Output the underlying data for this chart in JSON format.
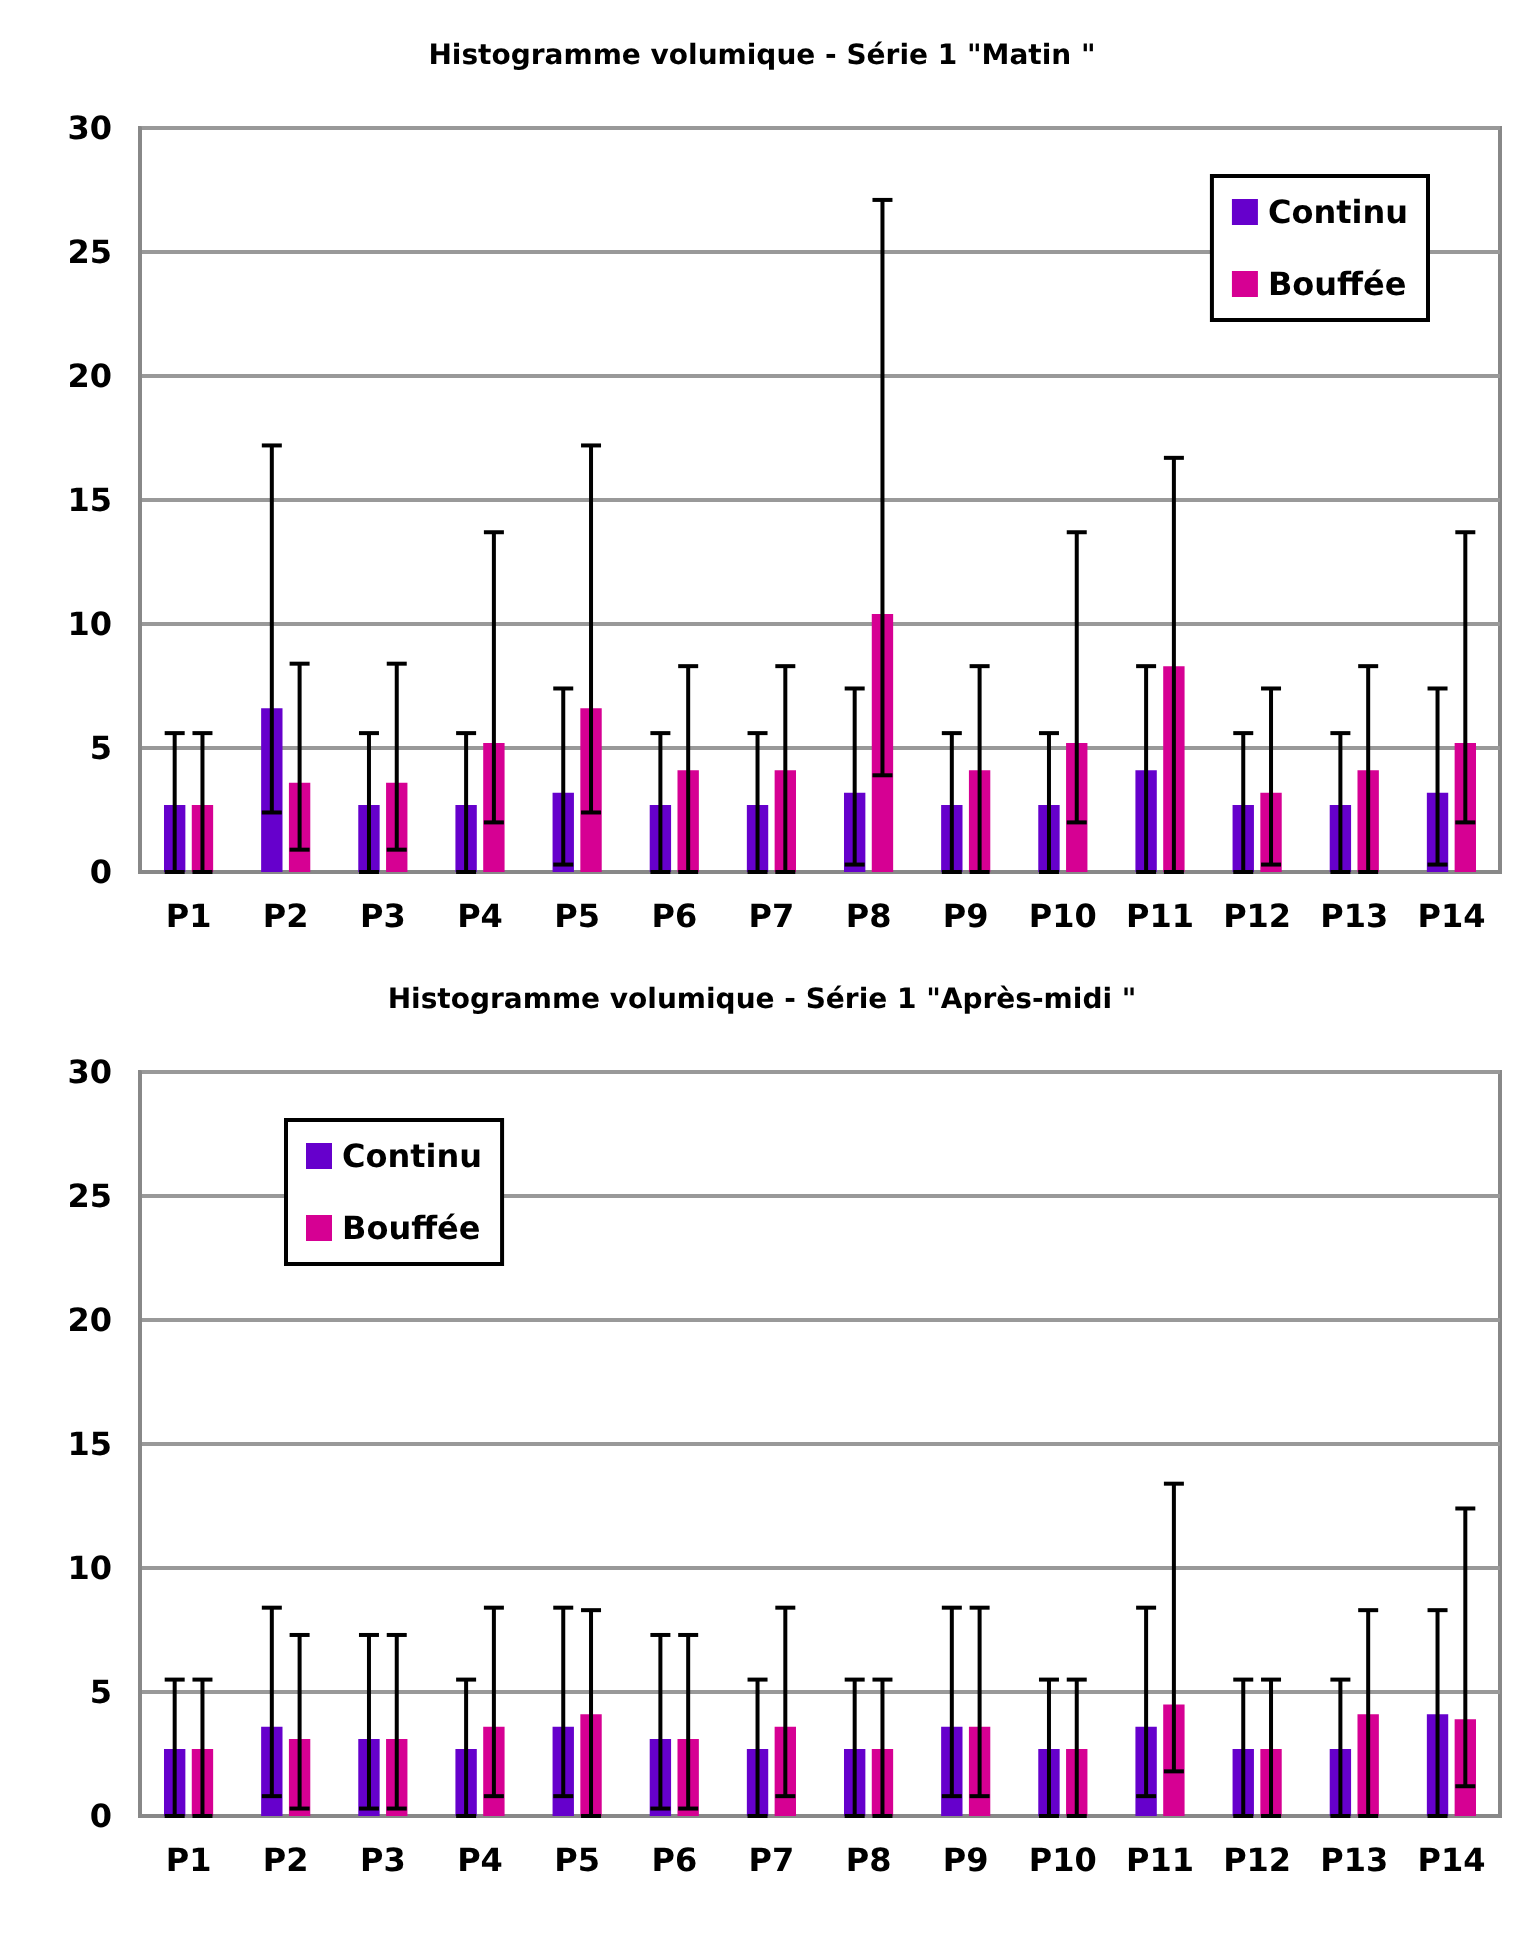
{
  "chart_data": [
    {
      "type": "bar",
      "title": "Histogramme volumique - Série 1 \"Matin \"",
      "categories": [
        "P1",
        "P2",
        "P3",
        "P4",
        "P5",
        "P6",
        "P7",
        "P8",
        "P9",
        "P10",
        "P11",
        "P12",
        "P13",
        "P14"
      ],
      "ylim": [
        0,
        30
      ],
      "yticks": [
        0,
        5,
        10,
        15,
        20,
        25,
        30
      ],
      "grid": "y",
      "legend": "top right",
      "series": [
        {
          "name": "Continu",
          "color": "#6600cc",
          "values": [
            2.7,
            6.6,
            2.7,
            2.7,
            3.2,
            2.7,
            2.7,
            3.2,
            2.7,
            2.7,
            4.1,
            2.7,
            2.7,
            3.2
          ],
          "errors": [
            [
              0,
              5.6
            ],
            [
              2.4,
              17.2
            ],
            [
              0,
              5.6
            ],
            [
              0,
              5.6
            ],
            [
              0.3,
              7.4
            ],
            [
              0,
              5.6
            ],
            [
              0,
              5.6
            ],
            [
              0.3,
              7.4
            ],
            [
              0,
              5.6
            ],
            [
              0,
              5.6
            ],
            [
              0,
              8.3
            ],
            [
              0,
              5.6
            ],
            [
              0,
              5.6
            ],
            [
              0.3,
              7.4
            ]
          ]
        },
        {
          "name": "Bouffée",
          "color": "#d60093",
          "values": [
            2.7,
            3.6,
            3.6,
            5.2,
            6.6,
            4.1,
            4.1,
            10.4,
            4.1,
            5.2,
            8.3,
            3.2,
            4.1,
            5.2
          ],
          "errors": [
            [
              0,
              5.6
            ],
            [
              0.9,
              8.4
            ],
            [
              0.9,
              8.4
            ],
            [
              2.0,
              13.7
            ],
            [
              2.4,
              17.2
            ],
            [
              0,
              8.3
            ],
            [
              0,
              8.3
            ],
            [
              3.9,
              27.1
            ],
            [
              0,
              8.3
            ],
            [
              2.0,
              13.7
            ],
            [
              0,
              16.7
            ],
            [
              0.3,
              7.4
            ],
            [
              0,
              8.3
            ],
            [
              2.0,
              13.7
            ]
          ]
        }
      ]
    },
    {
      "type": "bar",
      "title": "Histogramme volumique - Série 1 \"Après-midi \"",
      "categories": [
        "P1",
        "P2",
        "P3",
        "P4",
        "P5",
        "P6",
        "P7",
        "P8",
        "P9",
        "P10",
        "P11",
        "P12",
        "P13",
        "P14"
      ],
      "ylim": [
        0,
        30
      ],
      "yticks": [
        0,
        5,
        10,
        15,
        20,
        25,
        30
      ],
      "grid": "y",
      "legend": "top left",
      "series": [
        {
          "name": "Continu",
          "color": "#6600cc",
          "values": [
            2.7,
            3.6,
            3.1,
            2.7,
            3.6,
            3.1,
            2.7,
            2.7,
            3.6,
            2.7,
            3.6,
            2.7,
            2.7,
            4.1
          ],
          "errors": [
            [
              0,
              5.5
            ],
            [
              0.8,
              8.4
            ],
            [
              0.3,
              7.3
            ],
            [
              0,
              5.5
            ],
            [
              0.8,
              8.4
            ],
            [
              0.3,
              7.3
            ],
            [
              0,
              5.5
            ],
            [
              0,
              5.5
            ],
            [
              0.8,
              8.4
            ],
            [
              0,
              5.5
            ],
            [
              0.8,
              8.4
            ],
            [
              0,
              5.5
            ],
            [
              0,
              5.5
            ],
            [
              0,
              8.3
            ]
          ]
        },
        {
          "name": "Bouffée",
          "color": "#d60093",
          "values": [
            2.7,
            3.1,
            3.1,
            3.6,
            4.1,
            3.1,
            3.6,
            2.7,
            3.6,
            2.7,
            4.5,
            2.7,
            4.1,
            3.9
          ],
          "errors": [
            [
              0,
              5.5
            ],
            [
              0.3,
              7.3
            ],
            [
              0.3,
              7.3
            ],
            [
              0.8,
              8.4
            ],
            [
              0,
              8.3
            ],
            [
              0.3,
              7.3
            ],
            [
              0.8,
              8.4
            ],
            [
              0,
              5.5
            ],
            [
              0.8,
              8.4
            ],
            [
              0,
              5.5
            ],
            [
              1.8,
              13.4
            ],
            [
              0,
              5.5
            ],
            [
              0,
              8.3
            ],
            [
              1.2,
              12.4
            ]
          ]
        }
      ]
    }
  ]
}
